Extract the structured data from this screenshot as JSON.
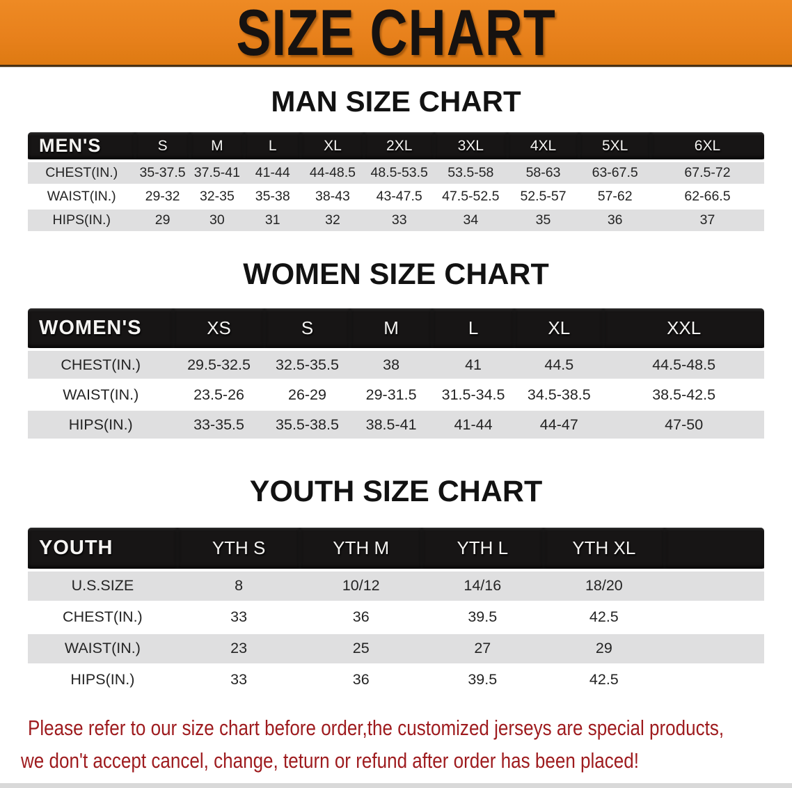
{
  "banner": {
    "title": "SIZE CHART",
    "bg_color": "#E8811C",
    "text_color": "#161210"
  },
  "sections": [
    {
      "title": "MAN SIZE CHART",
      "header": [
        "MEN'S",
        "S",
        "M",
        "L",
        "XL",
        "2XL",
        "3XL",
        "4XL",
        "5XL",
        "6XL"
      ],
      "rows": [
        {
          "label": "CHEST(IN.)",
          "values": [
            "35-37.5",
            "37.5-41",
            "41-44",
            "44-48.5",
            "48.5-53.5",
            "53.5-58",
            "58-63",
            "63-67.5",
            "67.5-72"
          ]
        },
        {
          "label": "WAIST(IN.)",
          "values": [
            "29-32",
            "32-35",
            "35-38",
            "38-43",
            "43-47.5",
            "47.5-52.5",
            "52.5-57",
            "57-62",
            "62-66.5"
          ]
        },
        {
          "label": "HIPS(IN.)",
          "values": [
            "29",
            "30",
            "31",
            "32",
            "33",
            "34",
            "35",
            "36",
            "37"
          ]
        }
      ]
    },
    {
      "title": "WOMEN SIZE CHART",
      "header": [
        "WOMEN'S",
        "XS",
        "S",
        "M",
        "L",
        "XL",
        "XXL"
      ],
      "rows": [
        {
          "label": "CHEST(IN.)",
          "values": [
            "29.5-32.5",
            "32.5-35.5",
            "38",
            "41",
            "44.5",
            "44.5-48.5"
          ]
        },
        {
          "label": "WAIST(IN.)",
          "values": [
            "23.5-26",
            "26-29",
            "29-31.5",
            "31.5-34.5",
            "34.5-38.5",
            "38.5-42.5"
          ]
        },
        {
          "label": "HIPS(IN.)",
          "values": [
            "33-35.5",
            "35.5-38.5",
            "38.5-41",
            "41-44",
            "44-47",
            "47-50"
          ]
        }
      ]
    },
    {
      "title": "YOUTH SIZE CHART",
      "header": [
        "YOUTH",
        "YTH S",
        "YTH M",
        "YTH L",
        "YTH XL"
      ],
      "rows": [
        {
          "label": "U.S.SIZE",
          "values": [
            "8",
            "10/12",
            "14/16",
            "18/20"
          ]
        },
        {
          "label": "CHEST(IN.)",
          "values": [
            "33",
            "36",
            "39.5",
            "42.5"
          ]
        },
        {
          "label": "WAIST(IN.)",
          "values": [
            "23",
            "25",
            "27",
            "29"
          ]
        },
        {
          "label": "HIPS(IN.)",
          "values": [
            "33",
            "36",
            "39.5",
            "42.5"
          ]
        }
      ]
    }
  ],
  "footer": {
    "line1": "Please refer to our size chart before order,the customized jerseys are special products,",
    "line2": "we don't accept cancel, change, teturn or refund after order has been placed!",
    "text_color": "#9E1B1E"
  }
}
